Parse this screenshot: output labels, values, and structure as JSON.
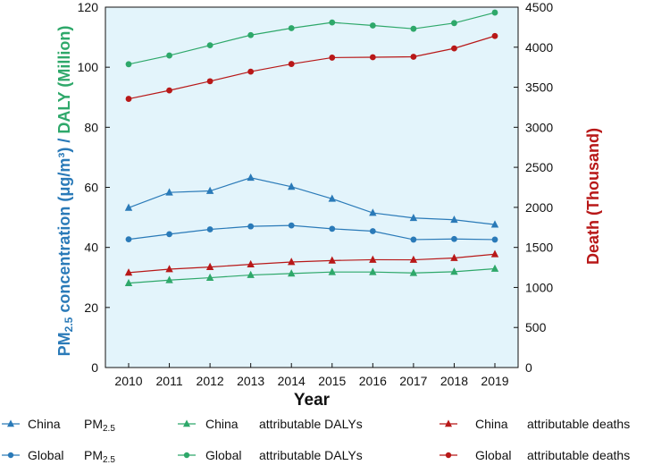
{
  "colors": {
    "china_pm": "#2a7ab8",
    "global_pm": "#2a7ab8",
    "china_daly": "#2ea86a",
    "global_daly": "#2ea86a",
    "china_death": "#b81818",
    "global_death": "#b81818",
    "plot_bg": "#e3f4fb",
    "left_label": "#2a7ab8",
    "left_label_daly": "#2ea86a",
    "right_label": "#b81818"
  },
  "chart_data": {
    "type": "line",
    "x": [
      "2010",
      "2011",
      "2012",
      "2013",
      "2014",
      "2015",
      "2016",
      "2017",
      "2018",
      "2019"
    ],
    "xlabel": "Year",
    "ylabel_left_part1": "PM",
    "ylabel_left_sub": "2.5",
    "ylabel_left_part2": " concentration (μg/m³) / ",
    "ylabel_left_part3": "DALY (Million)",
    "ylabel_right": "Death (Thousand)",
    "ylim_left": [
      0,
      120
    ],
    "ylim_right": [
      0,
      4500
    ],
    "yticks_left": [
      "0",
      "20",
      "40",
      "60",
      "80",
      "100",
      "120"
    ],
    "yticks_right": [
      "0",
      "500",
      "1000",
      "1500",
      "2000",
      "2500",
      "3000",
      "3500",
      "4000",
      "4500"
    ],
    "series": [
      {
        "id": "china_pm",
        "name": "China PM₂.₅",
        "axis": "left",
        "marker": "triangle",
        "color_key": "china_pm",
        "values": [
          53.2,
          58.3,
          58.8,
          63.2,
          60.2,
          56.2,
          51.5,
          49.8,
          49.2,
          47.6
        ]
      },
      {
        "id": "global_pm",
        "name": "Global PM₂.₅",
        "axis": "left",
        "marker": "circle",
        "color_key": "global_pm",
        "values": [
          42.7,
          44.4,
          46.0,
          47.0,
          47.3,
          46.2,
          45.4,
          42.6,
          42.8,
          42.6
        ]
      },
      {
        "id": "china_daly",
        "name": "China attributable DALYs",
        "axis": "left",
        "marker": "triangle",
        "color_key": "china_daly",
        "values": [
          28.1,
          29.1,
          29.9,
          30.8,
          31.3,
          31.8,
          31.8,
          31.5,
          31.9,
          32.9
        ]
      },
      {
        "id": "global_daly",
        "name": "Global attributable DALYs",
        "axis": "left",
        "marker": "circle",
        "color_key": "global_daly",
        "values": [
          101.0,
          103.9,
          107.3,
          110.7,
          113.0,
          114.9,
          113.9,
          112.8,
          114.7,
          118.2
        ]
      },
      {
        "id": "china_death",
        "name": "China attributable deaths",
        "axis": "right",
        "marker": "triangle",
        "color_key": "china_death",
        "values": [
          1185,
          1228,
          1255,
          1288,
          1318,
          1336,
          1346,
          1345,
          1368,
          1415
        ]
      },
      {
        "id": "global_death",
        "name": "Global attributable deaths",
        "axis": "right",
        "marker": "circle",
        "color_key": "global_death",
        "values": [
          3355,
          3460,
          3575,
          3695,
          3790,
          3870,
          3875,
          3880,
          3985,
          4140
        ]
      }
    ]
  },
  "legend": [
    {
      "series": "china_pm",
      "region": "China",
      "label_main": "PM",
      "label_sub": "2.5"
    },
    {
      "series": "china_daly",
      "region": "China",
      "label_main": "attributable DALYs",
      "label_sub": ""
    },
    {
      "series": "china_death",
      "region": "China",
      "label_main": "attributable deaths",
      "label_sub": ""
    },
    {
      "series": "global_pm",
      "region": "Global",
      "label_main": "PM",
      "label_sub": "2.5"
    },
    {
      "series": "global_daly",
      "region": "Global",
      "label_main": "attributable DALYs",
      "label_sub": ""
    },
    {
      "series": "global_death",
      "region": "Global",
      "label_main": "attributable deaths",
      "label_sub": ""
    }
  ]
}
